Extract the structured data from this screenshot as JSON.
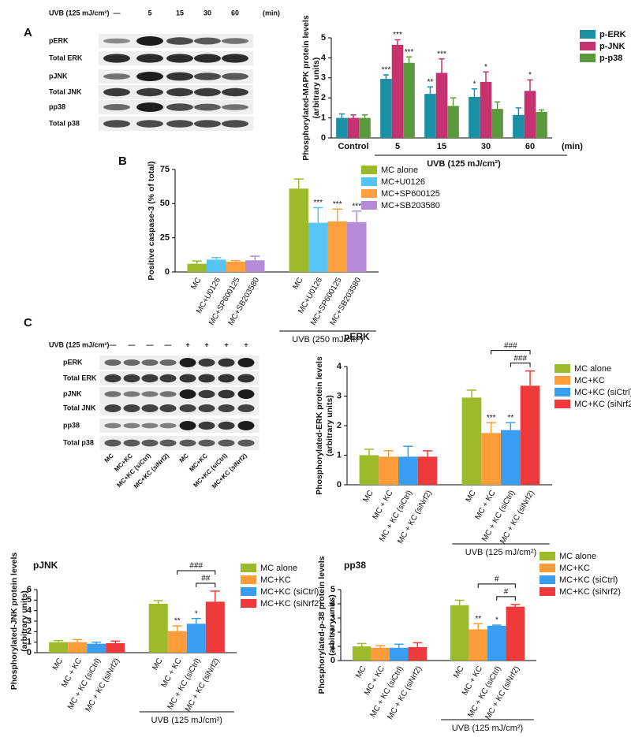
{
  "panels": [
    "A",
    "B",
    "C"
  ],
  "blots": [
    {
      "header": "UVB (125 mJ/cm²)",
      "lanes": [
        "—",
        "5",
        "15",
        "30",
        "60"
      ],
      "unit": "(min)",
      "rows": [
        "pERK",
        "Total ERK",
        "pJNK",
        "Total JNK",
        "pp38",
        "Total p38"
      ]
    },
    {
      "header": "UVB (125 mJ/cm²)",
      "lanes": [
        "—",
        "—",
        "—",
        "—",
        "+",
        "+",
        "+",
        "+"
      ],
      "rows": [
        "pERK",
        "Total ERK",
        "pJNK",
        "Total JNK",
        "pp38",
        "Total p38"
      ],
      "lane_labels": [
        "MC",
        "MC+KC",
        "MC+KC (siCtrl)",
        "MC+KC (siNrf2)",
        "MC",
        "MC+KC",
        "MC+KC (siCtrl)",
        "MC+KC (siNrf2)"
      ]
    }
  ],
  "chart_data": [
    {
      "type": "bar",
      "ylabel": [
        "Phosphorylated-MAPK protein levels",
        "(arbitrary units)"
      ],
      "categories": [
        "Control",
        "5",
        "15",
        "30",
        "60"
      ],
      "group_label": "UVB (125 mJ/cm²)",
      "unit_label": "(min)",
      "ylim": [
        0,
        5
      ],
      "yticks": [
        0,
        1,
        2,
        3,
        4,
        5
      ],
      "series": [
        {
          "name": "p-ERK",
          "color": "#1b8fa3",
          "values": [
            1.0,
            2.95,
            2.2,
            2.05,
            1.15
          ],
          "errors": [
            0.2,
            0.2,
            0.35,
            0.4,
            0.35
          ],
          "annotations": [
            null,
            "***",
            "**",
            "*",
            null
          ]
        },
        {
          "name": "p-JNK",
          "color": "#c4336f",
          "values": [
            1.0,
            4.65,
            3.25,
            2.8,
            2.35
          ],
          "errors": [
            0.15,
            0.25,
            0.7,
            0.5,
            0.55
          ],
          "annotations": [
            null,
            "***",
            "***",
            "*",
            "*"
          ]
        },
        {
          "name": "p-p38",
          "color": "#5b9a3c",
          "values": [
            1.0,
            3.75,
            1.6,
            1.45,
            1.3
          ],
          "errors": [
            0.15,
            0.3,
            0.4,
            0.35,
            0.1
          ],
          "annotations": [
            null,
            "***",
            null,
            null,
            null
          ]
        }
      ]
    },
    {
      "type": "bar",
      "ylabel": [
        "Positive caspase-3 (% of total)"
      ],
      "categories": [
        null,
        "UVB (250 mJ/cm²)"
      ],
      "tick_labels": [
        "MC",
        "MC+U0126",
        "MC+SP600125",
        "MC+SB203580",
        "MC",
        "MC+U0126",
        "MC+SP600125",
        "MC+SB203580"
      ],
      "ylim": [
        0,
        75
      ],
      "yticks": [
        0,
        25,
        50,
        75
      ],
      "series": [
        {
          "name": "MC alone",
          "color": "#9cbb2b",
          "values": [
            6,
            61
          ],
          "errors": [
            2,
            7
          ],
          "annotations": [
            null,
            null
          ]
        },
        {
          "name": "MC+U0126",
          "color": "#56c5f5",
          "values": [
            9,
            36
          ],
          "errors": [
            1.5,
            11
          ],
          "annotations": [
            null,
            "***"
          ]
        },
        {
          "name": "MC+SP600125",
          "color": "#ffa03f",
          "values": [
            7.5,
            37
          ],
          "errors": [
            0.8,
            9
          ],
          "annotations": [
            null,
            "***"
          ]
        },
        {
          "name": "MC+SB203580",
          "color": "#b48ad9",
          "values": [
            8.5,
            36.5
          ],
          "errors": [
            3,
            8
          ],
          "annotations": [
            null,
            "***"
          ]
        }
      ]
    },
    {
      "type": "bar",
      "title": "pERK",
      "ylabel": [
        "Phosphorylated-ERK protein levels",
        "(arbitrary units)"
      ],
      "categories": [
        null,
        "UVB (125 mJ/cm²)"
      ],
      "tick_labels": [
        "MC",
        "MC + KC",
        "MC + KC (siCtrl)",
        "MC + KC (siNrf2)",
        "MC",
        "MC + KC",
        "MC + KC (siCtrl)",
        "MC + KC (siNrf2)"
      ],
      "ylim": [
        0,
        4
      ],
      "yticks": [
        0,
        1,
        2,
        3,
        4
      ],
      "brackets": [
        "###",
        "###"
      ],
      "series": [
        {
          "name": "MC alone",
          "color": "#9cbb2b",
          "values": [
            1.0,
            2.95
          ],
          "errors": [
            0.2,
            0.25
          ],
          "annotations": [
            null,
            null
          ]
        },
        {
          "name": "MC+KC",
          "color": "#ff9c3a",
          "values": [
            0.95,
            1.75
          ],
          "errors": [
            0.2,
            0.35
          ],
          "annotations": [
            null,
            "***"
          ]
        },
        {
          "name": "MC+KC (siCtrl)",
          "color": "#3a9ef0",
          "values": [
            0.95,
            1.85
          ],
          "errors": [
            0.35,
            0.25
          ],
          "annotations": [
            null,
            "**"
          ]
        },
        {
          "name": "MC+KC (siNrf2)",
          "color": "#ee3a3a",
          "values": [
            0.95,
            3.35
          ],
          "errors": [
            0.2,
            0.5
          ],
          "annotations": [
            null,
            null
          ]
        }
      ]
    },
    {
      "type": "bar",
      "title": "pJNK",
      "ylabel": [
        "Phosphorylated-JNK protein levels",
        "(arbitrary units)"
      ],
      "categories": [
        null,
        "UVB (125 mJ/cm²)"
      ],
      "tick_labels": [
        "MC",
        "MC + KC",
        "MC + KC (siCtrl)",
        "MC + KC (siNrf2)",
        "MC",
        "MC + KC",
        "MC + KC (siCtrl)",
        "MC + KC (siNrf2)"
      ],
      "ylim": [
        0,
        6
      ],
      "yticks": [
        0,
        1,
        2,
        3,
        4,
        5,
        6
      ],
      "brackets": [
        "###",
        "##"
      ],
      "series": [
        {
          "name": "MC alone",
          "color": "#9cbb2b",
          "values": [
            1.0,
            4.65
          ],
          "errors": [
            0.15,
            0.3
          ],
          "annotations": [
            null,
            null
          ]
        },
        {
          "name": "MC+KC",
          "color": "#ff9c3a",
          "values": [
            1.0,
            2.05
          ],
          "errors": [
            0.25,
            0.5
          ],
          "annotations": [
            null,
            "**"
          ]
        },
        {
          "name": "MC+KC (siCtrl)",
          "color": "#3a9ef0",
          "values": [
            0.85,
            2.75
          ],
          "errors": [
            0.15,
            0.5
          ],
          "annotations": [
            null,
            "*"
          ]
        },
        {
          "name": "MC+KC (siNrf2)",
          "color": "#ee3a3a",
          "values": [
            0.9,
            4.85
          ],
          "errors": [
            0.2,
            1.0
          ],
          "annotations": [
            null,
            null
          ]
        }
      ]
    },
    {
      "type": "bar",
      "title": "pp38",
      "ylabel": [
        "Phosphorylated-p-38 protein levels",
        "(arbitrary units)"
      ],
      "categories": [
        null,
        "UVB (125 mJ/cm²)"
      ],
      "tick_labels": [
        "MC",
        "MC + KC",
        "MC + KC (siCtrl)",
        "MC + KC (siNrf2)",
        "MC",
        "MC + KC",
        "MC + KC (siCtrl)",
        "MC + KC (siNrf2)"
      ],
      "ylim": [
        0,
        5
      ],
      "yticks": [
        0,
        1,
        2,
        3,
        4,
        5
      ],
      "brackets": [
        "#",
        "#"
      ],
      "series": [
        {
          "name": "MC alone",
          "color": "#9cbb2b",
          "values": [
            1.0,
            3.9
          ],
          "errors": [
            0.2,
            0.35
          ],
          "annotations": [
            null,
            null
          ]
        },
        {
          "name": "MC+KC",
          "color": "#ff9c3a",
          "values": [
            0.9,
            2.2
          ],
          "errors": [
            0.15,
            0.4
          ],
          "annotations": [
            null,
            "**"
          ]
        },
        {
          "name": "MC+KC (siCtrl)",
          "color": "#3a9ef0",
          "values": [
            0.9,
            2.45
          ],
          "errors": [
            0.25,
            0.05
          ],
          "annotations": [
            null,
            "*"
          ]
        },
        {
          "name": "MC+KC (siNrf2)",
          "color": "#ee3a3a",
          "values": [
            0.95,
            3.8
          ],
          "errors": [
            0.3,
            0.15
          ],
          "annotations": [
            null,
            null
          ]
        }
      ]
    }
  ]
}
